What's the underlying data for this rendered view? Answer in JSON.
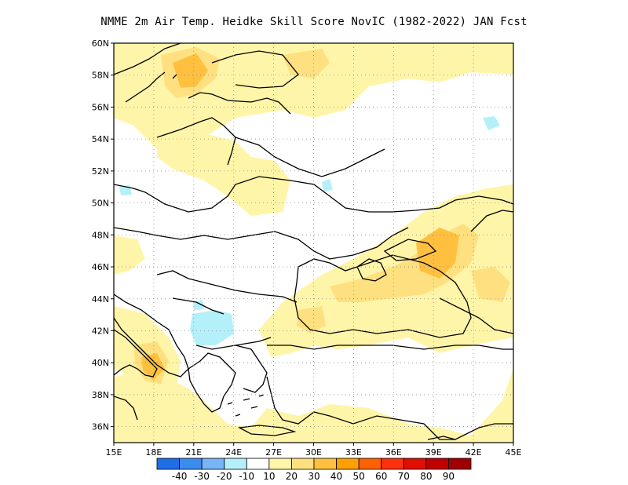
{
  "title": "NMME  2m Air Temp. Heidke Skill Score NovIC (1982-2022) JAN Fcst",
  "map": {
    "lon_range": [
      15,
      45
    ],
    "lat_range": [
      35,
      60
    ],
    "x_ticks": [
      "15E",
      "18E",
      "21E",
      "24E",
      "27E",
      "30E",
      "33E",
      "36E",
      "39E",
      "42E",
      "45E"
    ],
    "y_ticks": [
      "36N",
      "38N",
      "40N",
      "42N",
      "44N",
      "46N",
      "48N",
      "50N",
      "52N",
      "54N",
      "56N",
      "58N",
      "60N"
    ],
    "gridlines": "dotted"
  },
  "colorbar": {
    "labels": [
      "-40",
      "-30",
      "-20",
      "-10",
      "10",
      "20",
      "30",
      "40",
      "50",
      "60",
      "70",
      "80",
      "90"
    ],
    "colors": [
      "#1e6ee8",
      "#3c8cf0",
      "#78b4f8",
      "#b4f0fa",
      "#ffffff",
      "#fff5a8",
      "#ffe080",
      "#ffc040",
      "#ffa000",
      "#ff6000",
      "#ff3010",
      "#e01000",
      "#c00000",
      "#a00000"
    ]
  }
}
